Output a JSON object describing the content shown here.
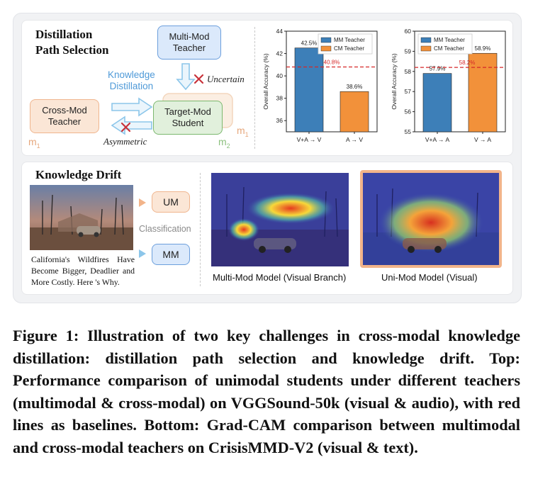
{
  "top": {
    "title": "Distillation\nPath  Selection",
    "multimod_teacher": "Multi-Mod\nTeacher",
    "knowledge_distillation": "Knowledge\nDistillation",
    "uncertain": "Uncertain",
    "cross_mod_teacher": "Cross-Mod\nTeacher",
    "target_mod_student": "Target-Mod\nStudent",
    "asymmetric": "Asymmetric",
    "m1_left": "m",
    "m1_left_sub": "1",
    "m1_right": "m",
    "m1_right_sub": "1",
    "m2": "m",
    "m2_sub": "2"
  },
  "chart_data": [
    {
      "type": "bar",
      "categories": [
        "V+A → V",
        "A → V"
      ],
      "values": [
        42.5,
        38.6
      ],
      "value_labels": [
        "42.5%",
        "38.6%"
      ],
      "legend": [
        "MM Teacher",
        "CM Teacher"
      ],
      "baseline": 40.8,
      "baseline_label": "40.8%",
      "ylabel": "Overall Accuracy (%)",
      "ylim": [
        35,
        44
      ],
      "yticks": [
        "36",
        "38",
        "40",
        "42",
        "44"
      ],
      "colors": [
        "#3d7fb8",
        "#f2913a"
      ]
    },
    {
      "type": "bar",
      "categories": [
        "V+A → A",
        "V → A"
      ],
      "values": [
        57.9,
        58.9
      ],
      "value_labels": [
        "57.9%",
        "58.9%"
      ],
      "legend": [
        "MM Teacher",
        "CM Teacher"
      ],
      "baseline": 58.2,
      "baseline_label": "58.2%",
      "ylabel": "Overall Accuracy (%)",
      "ylim": [
        55,
        60
      ],
      "yticks": [
        "55",
        "56",
        "57",
        "58",
        "59",
        "60"
      ],
      "colors": [
        "#3d7fb8",
        "#f2913a"
      ]
    }
  ],
  "bottom": {
    "title": "Knowledge Drift",
    "news_caption": "California's Wildfires Have Become Bigger, Deadlier and More Costly. Here 's Why.",
    "um_label": "UM",
    "mm_label": "MM",
    "classification": "Classification",
    "img1_caption": "Multi-Mod Model (Visual Branch)",
    "img2_caption": "Uni-Mod Model (Visual)"
  },
  "caption": "Figure 1: Illustration of two key challenges in cross-modal knowledge distillation: distillation path selection and knowledge drift. Top: Performance comparison of unimodal students under different teachers (multimodal & cross-modal) on VGGSound-50k (visual & audio), with red lines as baselines. Bottom: Grad-CAM comparison between multimodal and cross-modal teachers on CrisisMMD-V2 (visual & text).",
  "colors": {
    "mm_blue": "#3d7fb8",
    "cm_orange": "#f2913a",
    "baseline_red": "#d62728"
  }
}
